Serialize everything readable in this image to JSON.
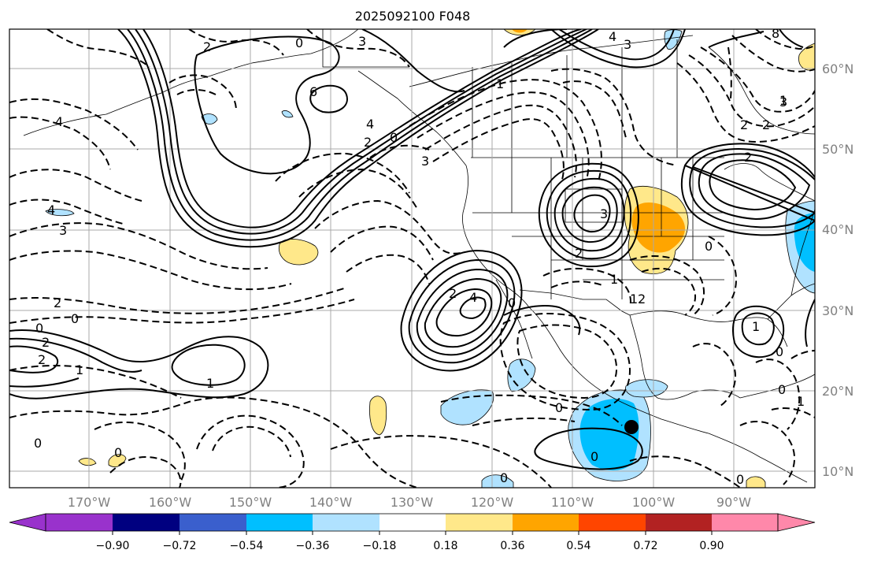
{
  "title": "2025092100 F048",
  "lat_labels": [
    "60°N",
    "50°N",
    "40°N",
    "30°N",
    "20°N",
    "10°N"
  ],
  "lon_labels": [
    "170°W",
    "160°W",
    "150°W",
    "140°W",
    "130°W",
    "120°W",
    "110°W",
    "100°W",
    "90°W"
  ],
  "colorbar": {
    "colors": [
      "#9932cc",
      "#000080",
      "#3a5fcd",
      "#00bfff",
      "#b0e2ff",
      "#ffffff",
      "#ffe88a",
      "#ffa500",
      "#ff4500",
      "#b22222",
      "#ff88aa"
    ],
    "tick_labels": [
      "−0.90",
      "−0.72",
      "−0.54",
      "−0.36",
      "−0.18",
      "0.18",
      "0.36",
      "0.54",
      "0.72",
      "0.90"
    ]
  },
  "contour_labels": {
    "c1": "2",
    "c2": "0",
    "c3": "3",
    "c4": "6",
    "c5": "4",
    "c6": "3",
    "c7": "8",
    "c8": "4",
    "c9": "3",
    "c10": "4",
    "c11": "2",
    "c12": "0",
    "c13": "4",
    "c14": "1",
    "c15": "3",
    "c16": "2",
    "c17": "2",
    "c18": "0",
    "c19": "2",
    "c20": "2",
    "c21": "1",
    "c22": "1",
    "c23": "4",
    "c24": "2",
    "c25": "3",
    "c26": "0",
    "c27": "1",
    "c28": "2",
    "c29": "1",
    "c30": "0",
    "c31": "0",
    "c32": "1",
    "c33": "0",
    "c34": "0",
    "c35": "0",
    "c36": "2",
    "c37": "2",
    "c38": "0",
    "c39": "0",
    "c40": "0",
    "c41": "3",
    "c42": "2",
    "c43": "1",
    "c44": "0",
    "c45": "0",
    "c46": "1"
  },
  "colors": {
    "grid": "#a9a9a9",
    "cyan": "#00bfff",
    "lightblue": "#b0e2ff",
    "yellow": "#ffe88a",
    "orange": "#ffa500"
  }
}
